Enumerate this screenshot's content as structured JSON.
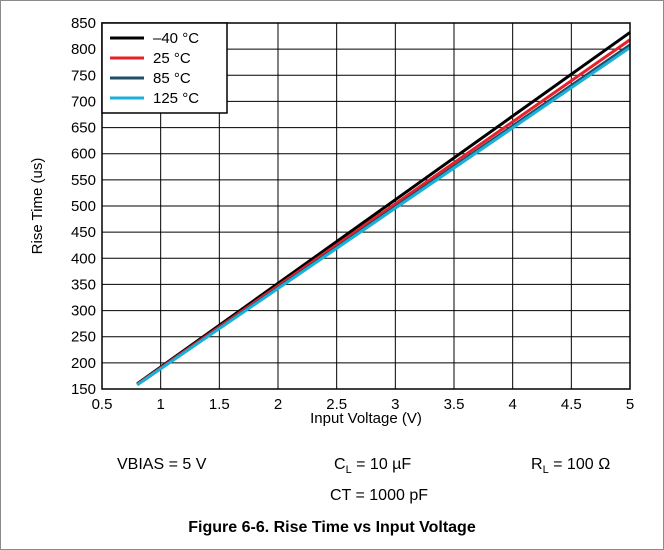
{
  "chart_data": {
    "type": "line",
    "xlabel": "Input Voltage (V)",
    "ylabel": "Rise Time (us)",
    "xlim": [
      0.5,
      5
    ],
    "ylim": [
      150,
      850
    ],
    "x_ticks": [
      "0.5",
      "1",
      "1.5",
      "2",
      "2.5",
      "3",
      "3.5",
      "4",
      "4.5",
      "5"
    ],
    "y_ticks": [
      "150",
      "200",
      "250",
      "300",
      "350",
      "400",
      "450",
      "500",
      "550",
      "600",
      "650",
      "700",
      "750",
      "800",
      "850"
    ],
    "grid": true,
    "legend_position": "top-left",
    "series": [
      {
        "name": "–40 °C",
        "color": "#000000",
        "x": [
          0.8,
          5
        ],
        "y": [
          160,
          832
        ]
      },
      {
        "name": "25 °C",
        "color": "#e8202a",
        "x": [
          0.8,
          5
        ],
        "y": [
          159,
          818
        ]
      },
      {
        "name": "85 °C",
        "color": "#1f4e6b",
        "x": [
          0.8,
          5
        ],
        "y": [
          158,
          808
        ]
      },
      {
        "name": "125 °C",
        "color": "#1ab0d8",
        "x": [
          0.8,
          5
        ],
        "y": [
          158,
          803
        ]
      }
    ]
  },
  "conditions": {
    "vbias": "VBIAS = 5 V",
    "cl_symbol": "C",
    "cl_sub": "L",
    "cl_value": " = 10 µF",
    "rl_symbol": "R",
    "rl_sub": "L",
    "rl_value": " = 100 Ω",
    "ct": "CT = 1000 pF"
  },
  "caption": "Figure 6-6. Rise Time vs Input Voltage"
}
